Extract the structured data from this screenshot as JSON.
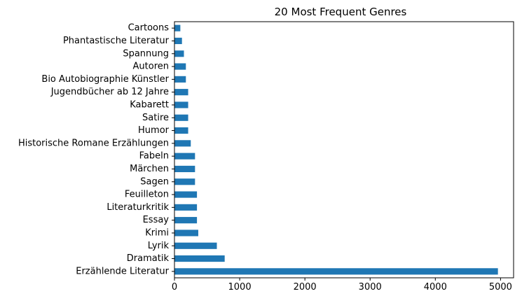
{
  "chart_data": {
    "type": "bar",
    "orientation": "horizontal",
    "title": "20 Most Frequent Genres",
    "xlabel": "",
    "ylabel": "",
    "categories": [
      "Erzählende Literatur",
      "Dramatik",
      "Lyrik",
      "Krimi",
      "Essay",
      "Literaturkritik",
      "Feuilleton",
      "Sagen",
      "Märchen",
      "Fabeln",
      "Historische Romane Erzählungen",
      "Humor",
      "Satire",
      "Kabarett",
      "Jugendbücher ab 12 Jahre",
      "Bio Autobiographie Künstler",
      "Autoren",
      "Spannung",
      "Phantastische Literatur",
      "Cartoons"
    ],
    "values": [
      4960,
      770,
      650,
      365,
      345,
      345,
      345,
      315,
      315,
      315,
      250,
      210,
      210,
      210,
      210,
      175,
      175,
      145,
      115,
      90
    ],
    "xlim": [
      0,
      5200
    ],
    "xticks": [
      0,
      1000,
      2000,
      3000,
      4000,
      5000
    ],
    "xtick_labels": [
      "0",
      "1000",
      "2000",
      "3000",
      "4000",
      "5000"
    ],
    "grid": false,
    "bar_color": "#1f77b4"
  }
}
